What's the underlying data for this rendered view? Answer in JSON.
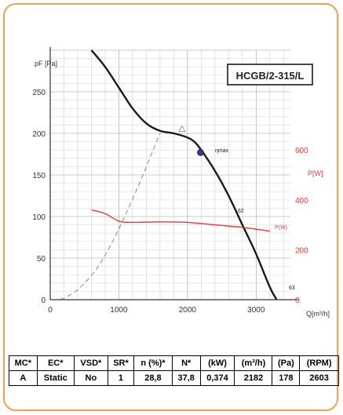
{
  "chart_data": {
    "type": "line",
    "title": "HCGB/2-315/L",
    "ylabel": "pF [Pa]",
    "y2label": "P[W]",
    "xlabel": "Q[m³/h]",
    "xlim": [
      0,
      3500
    ],
    "ylim": [
      0,
      300
    ],
    "y2lim": [
      0,
      1000
    ],
    "x_ticks": [
      "0",
      "1000",
      "2000",
      "3000"
    ],
    "y_ticks": [
      "0",
      "50",
      "100",
      "150",
      "200",
      "250"
    ],
    "y2_ticks": [
      "0",
      "200",
      "400",
      "600"
    ],
    "grid": true,
    "series": [
      {
        "name": "",
        "axis": "left",
        "color": "#1a1a1a",
        "x": [
          600,
          800,
          1000,
          1200,
          1400,
          1600,
          1800,
          2000,
          2100,
          2200,
          2400,
          2600,
          2800,
          3000,
          3200,
          3300
        ],
        "y": [
          300,
          280,
          255,
          230,
          212,
          203,
          200,
          195,
          190,
          180,
          155,
          125,
          90,
          55,
          15,
          0
        ]
      },
      {
        "name": "",
        "axis": "right",
        "color": "#e53935",
        "x": [
          600,
          800,
          1000,
          1200,
          1600,
          2000,
          2400,
          2800,
          3200
        ],
        "y": [
          360,
          345,
          315,
          310,
          312,
          310,
          300,
          290,
          275
        ]
      },
      {
        "name": "",
        "axis": "left",
        "color": "#888888",
        "dashed": true,
        "x": [
          150,
          400,
          700,
          1000,
          1300,
          1500,
          1600
        ],
        "y": [
          0,
          12,
          40,
          85,
          140,
          180,
          200
        ]
      }
    ],
    "annotations": {
      "operating_point": {
        "x": 2190,
        "y": 177,
        "label": "ηmax"
      },
      "curve_label_1": "62",
      "curve_label_2": "63",
      "power_label": "P(W)"
    }
  },
  "spec_table": {
    "headers": [
      "MC*",
      "EC*",
      "VSD*",
      "SR*",
      "n (%)*",
      "N*",
      "(kW)",
      "(m³/h)",
      "(Pa)",
      "(RPM)"
    ],
    "values": [
      "A",
      "Static",
      "No",
      "1",
      "28,8",
      "37,8",
      "0,374",
      "2182",
      "178",
      "2603"
    ]
  }
}
